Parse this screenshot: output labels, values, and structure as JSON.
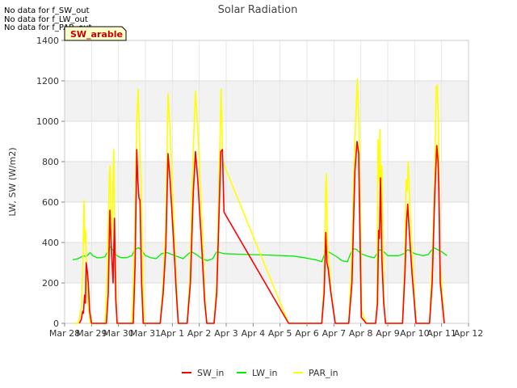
{
  "chart_data": {
    "type": "line",
    "title": "Solar Radiation",
    "xlabel": "",
    "ylabel": "LW, SW (W/m2)",
    "ylim": [
      0,
      1400
    ],
    "yticks": [
      0,
      200,
      400,
      600,
      800,
      1000,
      1200,
      1400
    ],
    "xlim": [
      0,
      15
    ],
    "xticks": [
      {
        "x": 0,
        "label": "Mar 28"
      },
      {
        "x": 1,
        "label": "Mar 29"
      },
      {
        "x": 2,
        "label": "Mar 30"
      },
      {
        "x": 3,
        "label": "Mar 31"
      },
      {
        "x": 4,
        "label": "Apr 1"
      },
      {
        "x": 5,
        "label": "Apr 2"
      },
      {
        "x": 6,
        "label": "Apr 3"
      },
      {
        "x": 7,
        "label": "Apr 4"
      },
      {
        "x": 8,
        "label": "Apr 5"
      },
      {
        "x": 9,
        "label": "Apr 6"
      },
      {
        "x": 10,
        "label": "Apr 7"
      },
      {
        "x": 11,
        "label": "Apr 8"
      },
      {
        "x": 12,
        "label": "Apr 9"
      },
      {
        "x": 13,
        "label": "Apr 10"
      },
      {
        "x": 14,
        "label": "Apr 11"
      },
      {
        "x": 15,
        "label": "Apr 12"
      }
    ],
    "no_data_messages": [
      "No data for f_SW_out",
      "No data for f_LW_out",
      "No data for f_PAR_out"
    ],
    "annotation_box": "SW_arable",
    "series": [
      {
        "name": "SW_in",
        "color": "#ff0000",
        "points": [
          [
            0.55,
            0
          ],
          [
            0.62,
            20
          ],
          [
            0.67,
            60
          ],
          [
            0.7,
            50
          ],
          [
            0.74,
            140
          ],
          [
            0.77,
            100
          ],
          [
            0.8,
            300
          ],
          [
            0.84,
            260
          ],
          [
            0.88,
            200
          ],
          [
            0.93,
            60
          ],
          [
            1.0,
            0
          ],
          [
            1.55,
            0
          ],
          [
            1.62,
            150
          ],
          [
            1.68,
            560
          ],
          [
            1.72,
            420
          ],
          [
            1.77,
            280
          ],
          [
            1.8,
            200
          ],
          [
            1.85,
            520
          ],
          [
            1.9,
            120
          ],
          [
            1.95,
            0
          ],
          [
            2.55,
            0
          ],
          [
            2.62,
            300
          ],
          [
            2.68,
            860
          ],
          [
            2.72,
            700
          ],
          [
            2.76,
            620
          ],
          [
            2.8,
            610
          ],
          [
            2.86,
            200
          ],
          [
            2.92,
            0
          ],
          [
            3.55,
            0
          ],
          [
            3.66,
            150
          ],
          [
            3.76,
            380
          ],
          [
            3.84,
            840
          ],
          [
            3.92,
            700
          ],
          [
            4.05,
            400
          ],
          [
            4.15,
            150
          ],
          [
            4.22,
            0
          ],
          [
            4.55,
            0
          ],
          [
            4.67,
            200
          ],
          [
            4.78,
            650
          ],
          [
            4.86,
            850
          ],
          [
            4.95,
            700
          ],
          [
            5.1,
            360
          ],
          [
            5.2,
            110
          ],
          [
            5.28,
            0
          ],
          [
            5.55,
            0
          ],
          [
            5.65,
            150
          ],
          [
            5.75,
            620
          ],
          [
            5.8,
            850
          ],
          [
            5.86,
            860
          ],
          [
            5.92,
            550
          ],
          [
            8.32,
            0
          ],
          [
            9.55,
            0
          ],
          [
            9.64,
            150
          ],
          [
            9.7,
            450
          ],
          [
            9.74,
            300
          ],
          [
            9.79,
            270
          ],
          [
            9.88,
            160
          ],
          [
            10.05,
            0
          ],
          [
            10.55,
            0
          ],
          [
            10.67,
            200
          ],
          [
            10.78,
            750
          ],
          [
            10.86,
            900
          ],
          [
            10.92,
            840
          ],
          [
            11.02,
            30
          ],
          [
            11.2,
            0
          ],
          [
            11.55,
            0
          ],
          [
            11.62,
            100
          ],
          [
            11.66,
            460
          ],
          [
            11.69,
            420
          ],
          [
            11.73,
            720
          ],
          [
            11.78,
            320
          ],
          [
            11.85,
            100
          ],
          [
            11.92,
            0
          ],
          [
            12.55,
            0
          ],
          [
            12.64,
            250
          ],
          [
            12.7,
            500
          ],
          [
            12.74,
            590
          ],
          [
            12.8,
            450
          ],
          [
            12.9,
            250
          ],
          [
            13.05,
            0
          ],
          [
            13.55,
            0
          ],
          [
            13.65,
            200
          ],
          [
            13.75,
            650
          ],
          [
            13.82,
            880
          ],
          [
            13.87,
            800
          ],
          [
            13.9,
            650
          ],
          [
            13.95,
            200
          ],
          [
            14.1,
            0
          ]
        ]
      },
      {
        "name": "LW_in",
        "color": "#00ee00",
        "points": [
          [
            0.3,
            315
          ],
          [
            0.5,
            320
          ],
          [
            0.7,
            335
          ],
          [
            0.8,
            330
          ],
          [
            0.95,
            350
          ],
          [
            1.05,
            335
          ],
          [
            1.2,
            325
          ],
          [
            1.35,
            325
          ],
          [
            1.5,
            330
          ],
          [
            1.6,
            355
          ],
          [
            1.7,
            380
          ],
          [
            1.8,
            360
          ],
          [
            1.9,
            340
          ],
          [
            2.0,
            330
          ],
          [
            2.1,
            325
          ],
          [
            2.3,
            325
          ],
          [
            2.5,
            335
          ],
          [
            2.6,
            365
          ],
          [
            2.75,
            375
          ],
          [
            2.9,
            355
          ],
          [
            3.0,
            335
          ],
          [
            3.2,
            325
          ],
          [
            3.4,
            320
          ],
          [
            3.6,
            345
          ],
          [
            3.8,
            350
          ],
          [
            4.0,
            340
          ],
          [
            4.2,
            330
          ],
          [
            4.4,
            320
          ],
          [
            4.6,
            345
          ],
          [
            4.7,
            355
          ],
          [
            4.9,
            340
          ],
          [
            5.1,
            320
          ],
          [
            5.3,
            310
          ],
          [
            5.5,
            320
          ],
          [
            5.65,
            355
          ],
          [
            5.9,
            345
          ],
          [
            6.5,
            342
          ],
          [
            7.5,
            338
          ],
          [
            8.5,
            333
          ],
          [
            8.9,
            325
          ],
          [
            9.3,
            315
          ],
          [
            9.55,
            305
          ],
          [
            9.7,
            360
          ],
          [
            9.85,
            350
          ],
          [
            10.1,
            330
          ],
          [
            10.3,
            310
          ],
          [
            10.5,
            305
          ],
          [
            10.7,
            370
          ],
          [
            10.85,
            365
          ],
          [
            11.0,
            345
          ],
          [
            11.3,
            330
          ],
          [
            11.5,
            325
          ],
          [
            11.7,
            365
          ],
          [
            11.85,
            355
          ],
          [
            12.0,
            335
          ],
          [
            12.2,
            335
          ],
          [
            12.4,
            335
          ],
          [
            12.6,
            345
          ],
          [
            12.75,
            365
          ],
          [
            13.0,
            345
          ],
          [
            13.3,
            335
          ],
          [
            13.5,
            340
          ],
          [
            13.7,
            375
          ],
          [
            13.85,
            365
          ],
          [
            14.0,
            355
          ],
          [
            14.2,
            335
          ]
        ]
      },
      {
        "name": "PAR_in",
        "color": "#ffff00",
        "points": [
          [
            0.35,
            0
          ],
          [
            0.5,
            0
          ],
          [
            0.62,
            80
          ],
          [
            0.68,
            300
          ],
          [
            0.72,
            610
          ],
          [
            0.75,
            400
          ],
          [
            0.78,
            460
          ],
          [
            0.82,
            200
          ],
          [
            0.88,
            90
          ],
          [
            0.95,
            0
          ],
          [
            1.5,
            0
          ],
          [
            1.58,
            250
          ],
          [
            1.66,
            740
          ],
          [
            1.69,
            780
          ],
          [
            1.73,
            400
          ],
          [
            1.78,
            550
          ],
          [
            1.82,
            860
          ],
          [
            1.87,
            400
          ],
          [
            1.94,
            0
          ],
          [
            2.5,
            0
          ],
          [
            2.6,
            400
          ],
          [
            2.68,
            1000
          ],
          [
            2.73,
            1160
          ],
          [
            2.78,
            900
          ],
          [
            2.84,
            700
          ],
          [
            2.9,
            300
          ],
          [
            2.95,
            0
          ],
          [
            3.55,
            0
          ],
          [
            3.66,
            200
          ],
          [
            3.76,
            500
          ],
          [
            3.84,
            1140
          ],
          [
            3.92,
            950
          ],
          [
            4.05,
            500
          ],
          [
            4.15,
            200
          ],
          [
            4.22,
            0
          ],
          [
            4.55,
            0
          ],
          [
            4.66,
            250
          ],
          [
            4.76,
            800
          ],
          [
            4.86,
            1150
          ],
          [
            4.95,
            950
          ],
          [
            5.1,
            500
          ],
          [
            5.2,
            150
          ],
          [
            5.28,
            0
          ],
          [
            5.55,
            0
          ],
          [
            5.65,
            200
          ],
          [
            5.75,
            800
          ],
          [
            5.81,
            1160
          ],
          [
            5.87,
            800
          ],
          [
            8.32,
            0
          ],
          [
            9.55,
            0
          ],
          [
            9.64,
            200
          ],
          [
            9.69,
            650
          ],
          [
            9.72,
            740
          ],
          [
            9.76,
            400
          ],
          [
            9.82,
            300
          ],
          [
            9.9,
            150
          ],
          [
            10.05,
            0
          ],
          [
            10.55,
            0
          ],
          [
            10.66,
            300
          ],
          [
            10.76,
            850
          ],
          [
            10.84,
            1100
          ],
          [
            10.87,
            1210
          ],
          [
            10.93,
            1000
          ],
          [
            11.03,
            60
          ],
          [
            11.2,
            0
          ],
          [
            11.55,
            0
          ],
          [
            11.6,
            100
          ],
          [
            11.64,
            910
          ],
          [
            11.67,
            700
          ],
          [
            11.71,
            960
          ],
          [
            11.74,
            500
          ],
          [
            11.78,
            780
          ],
          [
            11.85,
            120
          ],
          [
            11.92,
            0
          ],
          [
            12.55,
            0
          ],
          [
            12.63,
            300
          ],
          [
            12.68,
            710
          ],
          [
            12.72,
            650
          ],
          [
            12.76,
            800
          ],
          [
            12.82,
            600
          ],
          [
            12.92,
            300
          ],
          [
            13.05,
            0
          ],
          [
            13.55,
            0
          ],
          [
            13.65,
            300
          ],
          [
            13.74,
            700
          ],
          [
            13.8,
            1170
          ],
          [
            13.84,
            1180
          ],
          [
            13.88,
            1000
          ],
          [
            13.94,
            300
          ],
          [
            14.1,
            0
          ]
        ]
      }
    ]
  }
}
